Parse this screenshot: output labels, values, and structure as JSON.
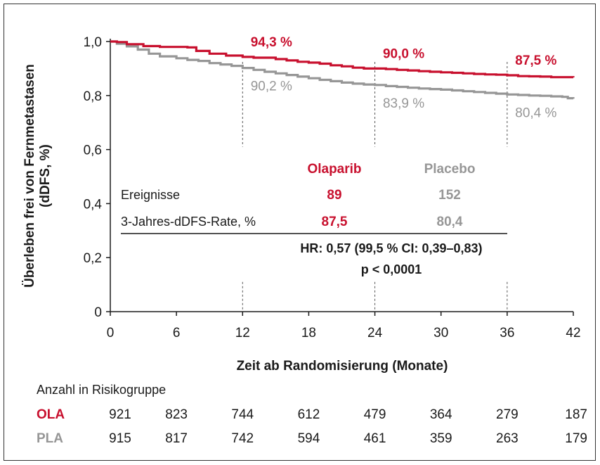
{
  "colors": {
    "ola": "#c8102e",
    "pla": "#969696",
    "text": "#1a1a1a"
  },
  "chart_data": {
    "type": "line",
    "xlabel": "Zeit ab Randomisierung (Monate)",
    "ylabel_lines": [
      "Überleben frei von Fernmetastasen",
      "(dDFS, %)"
    ],
    "xlim": [
      0,
      42
    ],
    "ylim": [
      0,
      1.0
    ],
    "x_ticks": [
      0,
      6,
      12,
      18,
      24,
      30,
      36,
      42
    ],
    "x_tick_labels": [
      "0",
      "6",
      "12",
      "18",
      "24",
      "30",
      "36",
      "42"
    ],
    "y_ticks": [
      0,
      0.2,
      0.4,
      0.6,
      0.8,
      1.0
    ],
    "y_tick_labels": [
      "0",
      "0,2",
      "0,4",
      "0,6",
      "0,8",
      "1,0"
    ],
    "grid": false,
    "reference_lines_x": [
      12,
      24,
      36
    ],
    "series": [
      {
        "name": "Olaparib",
        "key": "ola",
        "points": [
          [
            0,
            1.0
          ],
          [
            0.6,
            0.998
          ],
          [
            1.5,
            0.99
          ],
          [
            3,
            0.983
          ],
          [
            4.5,
            0.98
          ],
          [
            6,
            0.98
          ],
          [
            7,
            0.978
          ],
          [
            7.8,
            0.965
          ],
          [
            9,
            0.955
          ],
          [
            10.5,
            0.948
          ],
          [
            12,
            0.943
          ],
          [
            13,
            0.94
          ],
          [
            15,
            0.935
          ],
          [
            16,
            0.93
          ],
          [
            17,
            0.925
          ],
          [
            18,
            0.922
          ],
          [
            19,
            0.918
          ],
          [
            20,
            0.912
          ],
          [
            21,
            0.908
          ],
          [
            22,
            0.903
          ],
          [
            23,
            0.9
          ],
          [
            24,
            0.9
          ],
          [
            25,
            0.898
          ],
          [
            26,
            0.895
          ],
          [
            27,
            0.893
          ],
          [
            28,
            0.89
          ],
          [
            29,
            0.888
          ],
          [
            30,
            0.886
          ],
          [
            31,
            0.884
          ],
          [
            32,
            0.882
          ],
          [
            33,
            0.88
          ],
          [
            34,
            0.878
          ],
          [
            35,
            0.877
          ],
          [
            36,
            0.875
          ],
          [
            37,
            0.872
          ],
          [
            38,
            0.871
          ],
          [
            39,
            0.87
          ],
          [
            40,
            0.868
          ],
          [
            42,
            0.867
          ]
        ]
      },
      {
        "name": "Placebo",
        "key": "pla",
        "points": [
          [
            0,
            1.0
          ],
          [
            0.6,
            0.992
          ],
          [
            1.5,
            0.982
          ],
          [
            2.5,
            0.97
          ],
          [
            3.5,
            0.955
          ],
          [
            4.5,
            0.945
          ],
          [
            6,
            0.938
          ],
          [
            7,
            0.932
          ],
          [
            8,
            0.928
          ],
          [
            9,
            0.92
          ],
          [
            10,
            0.915
          ],
          [
            11,
            0.91
          ],
          [
            12,
            0.902
          ],
          [
            13,
            0.895
          ],
          [
            14,
            0.888
          ],
          [
            15,
            0.882
          ],
          [
            16,
            0.876
          ],
          [
            17,
            0.87
          ],
          [
            18,
            0.864
          ],
          [
            19,
            0.858
          ],
          [
            20,
            0.853
          ],
          [
            21,
            0.848
          ],
          [
            22,
            0.844
          ],
          [
            23,
            0.841
          ],
          [
            24,
            0.839
          ],
          [
            25,
            0.835
          ],
          [
            26,
            0.832
          ],
          [
            27,
            0.829
          ],
          [
            28,
            0.826
          ],
          [
            29,
            0.824
          ],
          [
            30,
            0.822
          ],
          [
            31,
            0.819
          ],
          [
            32,
            0.816
          ],
          [
            33,
            0.813
          ],
          [
            34,
            0.81
          ],
          [
            35,
            0.807
          ],
          [
            36,
            0.804
          ],
          [
            37,
            0.802
          ],
          [
            38,
            0.8
          ],
          [
            39,
            0.799
          ],
          [
            40,
            0.797
          ],
          [
            41,
            0.795
          ],
          [
            41.5,
            0.79
          ],
          [
            42,
            0.788
          ]
        ]
      }
    ],
    "annotations": [
      {
        "series": "ola",
        "text": "94,3 %",
        "x": 12,
        "value": 0.943
      },
      {
        "series": "ola",
        "text": "90,0 %",
        "x": 24,
        "value": 0.9
      },
      {
        "series": "ola",
        "text": "87,5 %",
        "x": 36,
        "value": 0.875
      },
      {
        "series": "pla",
        "text": "90,2 %",
        "x": 12,
        "value": 0.902
      },
      {
        "series": "pla",
        "text": "83,9 %",
        "x": 24,
        "value": 0.839
      },
      {
        "series": "pla",
        "text": "80,4 %",
        "x": 36,
        "value": 0.804
      }
    ],
    "summary_table": {
      "col_headers": [
        "Olaparib",
        "Placebo"
      ],
      "rows": [
        {
          "label": "Ereignisse",
          "ola": "89",
          "pla": "152"
        },
        {
          "label": "3-Jahres-dDFS-Rate, %",
          "ola": "87,5",
          "pla": "80,4"
        }
      ],
      "hr_text": "HR: 0,57 (99,5 % CI: 0,39–0,83)",
      "p_text": "p < 0,0001"
    },
    "risk_table": {
      "title": "Anzahl in Risikogruppe",
      "rows": [
        {
          "label": "OLA",
          "key": "ola",
          "values": [
            "921",
            "823",
            "744",
            "612",
            "479",
            "364",
            "279",
            "187"
          ]
        },
        {
          "label": "PLA",
          "key": "pla",
          "values": [
            "915",
            "817",
            "742",
            "594",
            "461",
            "359",
            "263",
            "179"
          ]
        }
      ]
    }
  }
}
